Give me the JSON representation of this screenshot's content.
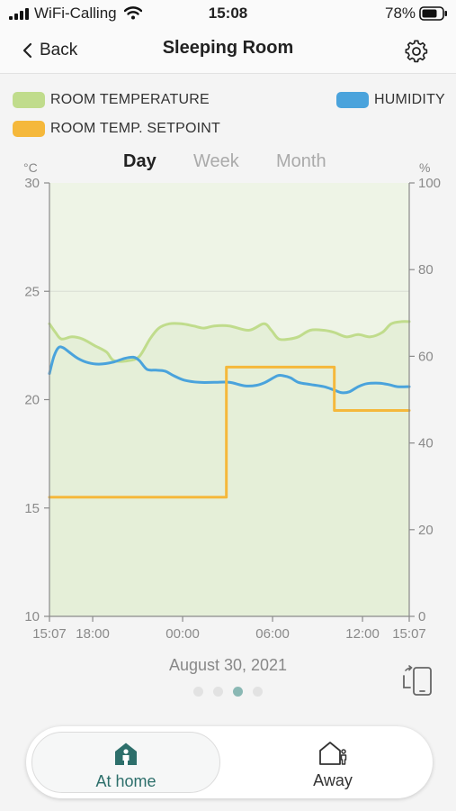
{
  "status_bar": {
    "carrier": "WiFi-Calling",
    "time": "15:08",
    "battery": "78%"
  },
  "nav": {
    "back_label": "Back",
    "title": "Sleeping Room",
    "settings_icon": "gear-icon"
  },
  "legend": [
    {
      "label": "ROOM TEMPERATURE",
      "color": "#c0dc8c"
    },
    {
      "label": "HUMIDITY",
      "color": "#4aa3dc"
    },
    {
      "label": "ROOM TEMP. SETPOINT",
      "color": "#f5b83b"
    }
  ],
  "tabs": [
    {
      "label": "Day",
      "active": true
    },
    {
      "label": "Week",
      "active": false
    },
    {
      "label": "Month",
      "active": false
    }
  ],
  "chart_data": {
    "type": "line",
    "x_tick_labels": [
      "15:07",
      "18:00",
      "00:00",
      "06:00",
      "12:00",
      "15:07"
    ],
    "x_ticks_hours": [
      0,
      2.883,
      8.883,
      14.883,
      20.883,
      24
    ],
    "y_left": {
      "unit": "°C",
      "range": [
        10,
        30
      ],
      "ticks": [
        10,
        15,
        20,
        25,
        30
      ]
    },
    "y_right": {
      "unit": "%",
      "range": [
        0,
        100
      ],
      "ticks": [
        0,
        20,
        40,
        60,
        80,
        100
      ]
    },
    "grid": true,
    "series": [
      {
        "name": "ROOM TEMPERATURE",
        "axis": "left",
        "color": "#c0dc8c",
        "fill": true,
        "points": [
          [
            0,
            23.5
          ],
          [
            0.4,
            23.1
          ],
          [
            0.8,
            22.8
          ],
          [
            1.5,
            22.9
          ],
          [
            2.2,
            22.8
          ],
          [
            3.0,
            22.5
          ],
          [
            3.8,
            22.2
          ],
          [
            4.3,
            21.8
          ],
          [
            5.3,
            21.8
          ],
          [
            6.0,
            22.0
          ],
          [
            6.7,
            22.8
          ],
          [
            7.3,
            23.3
          ],
          [
            8.0,
            23.5
          ],
          [
            8.8,
            23.5
          ],
          [
            9.6,
            23.4
          ],
          [
            10.3,
            23.3
          ],
          [
            11.0,
            23.4
          ],
          [
            12.0,
            23.4
          ],
          [
            13.3,
            23.2
          ],
          [
            14.3,
            23.5
          ],
          [
            14.8,
            23.2
          ],
          [
            15.3,
            22.8
          ],
          [
            16.0,
            22.8
          ],
          [
            16.6,
            22.9
          ],
          [
            17.4,
            23.2
          ],
          [
            18.3,
            23.2
          ],
          [
            19.0,
            23.1
          ],
          [
            19.8,
            22.9
          ],
          [
            20.6,
            23.0
          ],
          [
            21.4,
            22.9
          ],
          [
            22.2,
            23.1
          ],
          [
            22.8,
            23.5
          ],
          [
            23.5,
            23.6
          ],
          [
            24.0,
            23.6
          ]
        ]
      },
      {
        "name": "HUMIDITY",
        "axis": "right",
        "color": "#4aa3dc",
        "fill": false,
        "points": [
          [
            0,
            56
          ],
          [
            0.3,
            60
          ],
          [
            0.6,
            62
          ],
          [
            0.9,
            62
          ],
          [
            1.3,
            61
          ],
          [
            1.9,
            59.5
          ],
          [
            2.6,
            58.5
          ],
          [
            3.3,
            58.2
          ],
          [
            4.2,
            58.6
          ],
          [
            5.0,
            59.5
          ],
          [
            5.6,
            59.8
          ],
          [
            6.0,
            59
          ],
          [
            6.5,
            57
          ],
          [
            7.1,
            56.8
          ],
          [
            7.7,
            56.6
          ],
          [
            8.3,
            55.5
          ],
          [
            9.0,
            54.5
          ],
          [
            10.0,
            54
          ],
          [
            11.0,
            54
          ],
          [
            12.0,
            54
          ],
          [
            13.0,
            53.2
          ],
          [
            13.8,
            53.3
          ],
          [
            14.4,
            54
          ],
          [
            15.2,
            55.5
          ],
          [
            15.6,
            55.5
          ],
          [
            16.1,
            55
          ],
          [
            16.6,
            54
          ],
          [
            17.4,
            53.5
          ],
          [
            18.3,
            53
          ],
          [
            19.0,
            52.2
          ],
          [
            19.5,
            51.6
          ],
          [
            20.0,
            51.8
          ],
          [
            20.6,
            53
          ],
          [
            21.2,
            53.7
          ],
          [
            22.0,
            53.8
          ],
          [
            22.6,
            53.5
          ],
          [
            23.2,
            53
          ],
          [
            24.0,
            53
          ]
        ]
      },
      {
        "name": "ROOM TEMP. SETPOINT",
        "axis": "left",
        "color": "#f5b83b",
        "fill": false,
        "step": true,
        "points": [
          [
            0,
            15.5
          ],
          [
            11.8,
            15.5
          ],
          [
            11.8,
            21.5
          ],
          [
            19.0,
            21.5
          ],
          [
            19.0,
            19.5
          ],
          [
            24.0,
            19.5
          ]
        ]
      }
    ]
  },
  "date_label": "August 30, 2021",
  "rotate_icon": "rotate-device-icon",
  "pagination": {
    "count": 4,
    "active_index": 2
  },
  "modes": [
    {
      "label": "At home",
      "icon": "home-person-icon",
      "selected": true
    },
    {
      "label": "Away",
      "icon": "away-icon",
      "selected": false
    }
  ],
  "colors": {
    "accent": "#2d6f6b",
    "chart_bg": "#eef4e6",
    "axis": "#8a8a8a"
  }
}
